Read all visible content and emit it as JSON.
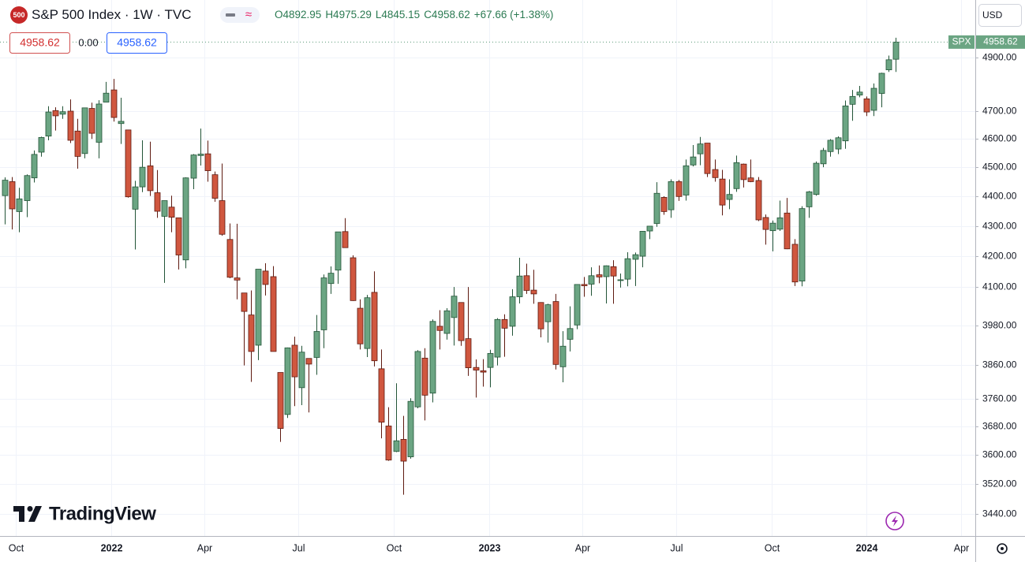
{
  "header": {
    "badge": "500",
    "title": "S&P 500 Index · 1W · TVC",
    "ohlc": [
      "O4892.95",
      "H4975.29",
      "L4845.15",
      "C4958.62"
    ],
    "change": "+67.66 (+1.38%)",
    "bid": "4958.62",
    "spread": "0.00",
    "ask": "4958.62",
    "currency": "USD",
    "logo": "TradingView"
  },
  "chart_data": {
    "type": "candlestick",
    "symbol": "SPX",
    "log_scale": true,
    "grid": true,
    "up_color": "#6ba583",
    "up_border": "#225437",
    "down_color": "#d0573f",
    "down_border": "#5e1a10",
    "candles": {
      "open": [
        4402,
        4450,
        4348,
        4385,
        4463,
        4553,
        4610,
        4702,
        4689,
        4700,
        4628,
        4548,
        4710,
        4588,
        4733,
        4778,
        4655,
        4632,
        4356,
        4432,
        4505,
        4412,
        4332,
        4363,
        4327,
        4188,
        4462,
        4541,
        4547,
        4474,
        4385,
        4255,
        4130,
        4082,
        4013,
        3920,
        4152,
        4134,
        3838,
        3715,
        3920,
        3793,
        3880,
        3883,
        3967,
        4112,
        4155,
        4281,
        4195,
        4034,
        3910,
        4084,
        3849,
        3682,
        3610,
        3644,
        3595,
        3737,
        3881,
        3777,
        3978,
        3956,
        4005,
        4052,
        3940,
        3853,
        3843,
        3853,
        3884,
        3999,
        3978,
        4070,
        4137,
        4091,
        4052,
        3992,
        4055,
        3855,
        3938,
        3982,
        4109,
        4110,
        4140,
        4134,
        4166,
        4124,
        4126,
        4190,
        4200,
        4283,
        4308,
        4396,
        4354,
        4450,
        4404,
        4508,
        4547,
        4585,
        4492,
        4459,
        4389,
        4426,
        4511,
        4463,
        4454,
        4328,
        4284,
        4289,
        4343,
        4239,
        4120,
        4364,
        4406,
        4512,
        4555,
        4564,
        4593,
        4725,
        4759,
        4745,
        4703,
        4765,
        4853,
        4892.95
      ],
      "high": [
        4465,
        4466,
        4429,
        4475,
        4559,
        4608,
        4718,
        4714,
        4718,
        4743,
        4672,
        4713,
        4731,
        4740,
        4808,
        4819,
        4749,
        4632,
        4453,
        4595,
        4590,
        4490,
        4385,
        4402,
        4327,
        4465,
        4546,
        4637,
        4594,
        4485,
        4513,
        4308,
        4307,
        4082,
        4090,
        4158,
        4177,
        4168,
        3838,
        3913,
        3946,
        3918,
        3880,
        4013,
        4141,
        4167,
        4280,
        4326,
        4203,
        4062,
        4076,
        4151,
        3907,
        3736,
        3806,
        3711,
        3762,
        3905,
        3911,
        3999,
        4028,
        4034,
        4101,
        4052,
        4101,
        3877,
        3878,
        3906,
        4003,
        4015,
        4094,
        4195,
        4176,
        4156,
        4053,
        4048,
        4079,
        3963,
        4040,
        4110,
        4133,
        4164,
        4170,
        4170,
        4187,
        4144,
        4213,
        4212,
        4283,
        4299,
        4448,
        4400,
        4458,
        4456,
        4527,
        4578,
        4607,
        4585,
        4527,
        4491,
        4458,
        4541,
        4513,
        4527,
        4466,
        4338,
        4318,
        4385,
        4394,
        4256,
        4366,
        4418,
        4520,
        4568,
        4599,
        4609,
        4739,
        4778,
        4793,
        4754,
        4802,
        4842,
        4907,
        4975.29
      ],
      "low": [
        4305,
        4288,
        4279,
        4329,
        4447,
        4537,
        4595,
        4630,
        4672,
        4585,
        4495,
        4531,
        4600,
        4531,
        4733,
        4662,
        4582,
        4395,
        4222,
        4414,
        4401,
        4327,
        4114,
        4279,
        4157,
        4161,
        4424,
        4506,
        4450,
        4381,
        4267,
        4129,
        4062,
        3859,
        3810,
        3875,
        4074,
        3901,
        3637,
        3705,
        3739,
        3742,
        3721,
        3831,
        3911,
        4079,
        4111,
        4253,
        4057,
        3907,
        3884,
        3856,
        3647,
        3584,
        3608,
        3491,
        3590,
        3733,
        3698,
        3750,
        3907,
        3937,
        3919,
        3918,
        3828,
        3764,
        3796,
        3794,
        3859,
        3885,
        3949,
        4049,
        4079,
        4048,
        3944,
        3928,
        3847,
        3809,
        3901,
        3969,
        4070,
        4073,
        4113,
        4049,
        4048,
        4099,
        4103,
        4104,
        4164,
        4256,
        4297,
        4337,
        4327,
        4384,
        4385,
        4503,
        4507,
        4466,
        4450,
        4335,
        4356,
        4415,
        4430,
        4448,
        4316,
        4238,
        4216,
        4283,
        4223,
        4104,
        4103,
        4327,
        4402,
        4500,
        4537,
        4546,
        4565,
        4665,
        4751,
        4682,
        4682,
        4714,
        4845,
        4845.15
      ],
      "close": [
        4455,
        4357,
        4391,
        4471,
        4545,
        4605,
        4697,
        4683,
        4698,
        4595,
        4538,
        4712,
        4620,
        4726,
        4766,
        4677,
        4663,
        4398,
        4432,
        4500,
        4419,
        4349,
        4385,
        4329,
        4204,
        4463,
        4543,
        4546,
        4488,
        4393,
        4272,
        4132,
        4123,
        4024,
        3901,
        4158,
        4109,
        3901,
        3675,
        3912,
        3825,
        3899,
        3863,
        3962,
        4130,
        4145,
        4280,
        4228,
        4058,
        3924,
        4067,
        3873,
        3693,
        3586,
        3640,
        3583,
        3753,
        3901,
        3771,
        3993,
        3965,
        4026,
        4072,
        3934,
        3852,
        3845,
        3839,
        3895,
        3999,
        3972,
        4070,
        4136,
        4090,
        4079,
        3970,
        4045,
        3862,
        3917,
        3971,
        4109,
        4105,
        4137,
        4133,
        4169,
        4136,
        4124,
        4192,
        4205,
        4282,
        4299,
        4410,
        4348,
        4450,
        4399,
        4505,
        4536,
        4582,
        4478,
        4464,
        4370,
        4406,
        4516,
        4457,
        4450,
        4320,
        4288,
        4309,
        4327,
        4224,
        4117,
        4358,
        4415,
        4514,
        4559,
        4595,
        4604,
        4719,
        4754,
        4770,
        4697,
        4784,
        4840,
        4891,
        4958.62
      ]
    },
    "xlim": [
      -0.65,
      134
    ],
    "xticks": [
      {
        "value": 1.57,
        "label": "Oct"
      },
      {
        "value": 14.71,
        "label": "2022"
      },
      {
        "value": 27.57,
        "label": "Apr"
      },
      {
        "value": 40.57,
        "label": "Jul"
      },
      {
        "value": 53.71,
        "label": "Oct"
      },
      {
        "value": 66.86,
        "label": "2023"
      },
      {
        "value": 79.71,
        "label": "Apr"
      },
      {
        "value": 92.71,
        "label": "Jul"
      },
      {
        "value": 105.86,
        "label": "Oct"
      },
      {
        "value": 119,
        "label": "2024"
      },
      {
        "value": 132,
        "label": "Apr"
      }
    ],
    "ylim": [
      3381,
      5123
    ],
    "yticks": [
      {
        "value": 3440,
        "label": "3440.00"
      },
      {
        "value": 3520,
        "label": "3520.00"
      },
      {
        "value": 3600,
        "label": "3600.00"
      },
      {
        "value": 3680,
        "label": "3680.00"
      },
      {
        "value": 3760,
        "label": "3760.00"
      },
      {
        "value": 3860,
        "label": "3860.00"
      },
      {
        "value": 3980,
        "label": "3980.00"
      },
      {
        "value": 4100,
        "label": "4100.00"
      },
      {
        "value": 4200,
        "label": "4200.00"
      },
      {
        "value": 4300,
        "label": "4300.00"
      },
      {
        "value": 4400,
        "label": "4400.00"
      },
      {
        "value": 4500,
        "label": "4500.00"
      },
      {
        "value": 4600,
        "label": "4600.00"
      },
      {
        "value": 4700,
        "label": "4700.00"
      },
      {
        "value": 4900,
        "label": "4900.00"
      }
    ]
  }
}
